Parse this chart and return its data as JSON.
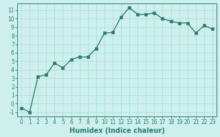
{
  "x": [
    0,
    1,
    2,
    3,
    4,
    5,
    6,
    7,
    8,
    9,
    10,
    11,
    12,
    13,
    14,
    15,
    16,
    17,
    18,
    19,
    20,
    21,
    22,
    23
  ],
  "y": [
    -0.5,
    -1.0,
    3.2,
    3.4,
    4.8,
    4.2,
    5.2,
    5.5,
    5.5,
    6.5,
    8.3,
    8.4,
    10.2,
    11.3,
    10.5,
    10.5,
    10.7,
    10.0,
    9.7,
    9.5,
    9.5,
    8.3,
    9.2,
    8.8
  ],
  "line_color": "#2a7a6e",
  "bg_color": "#cdf0eb",
  "grid_color": "#b0ddd8",
  "xlabel": "Humidex (Indice chaleur)",
  "xlim": [
    -0.5,
    23.5
  ],
  "ylim": [
    -1.5,
    11.8
  ],
  "yticks": [
    -1,
    0,
    1,
    2,
    3,
    4,
    5,
    6,
    7,
    8,
    9,
    10,
    11
  ],
  "xticks": [
    0,
    1,
    2,
    3,
    4,
    5,
    6,
    7,
    8,
    9,
    10,
    11,
    12,
    13,
    14,
    15,
    16,
    17,
    18,
    19,
    20,
    21,
    22,
    23
  ],
  "marker": "s",
  "markersize": 2.5,
  "linewidth": 1.0,
  "tick_fontsize": 5.5,
  "xlabel_fontsize": 7.0
}
